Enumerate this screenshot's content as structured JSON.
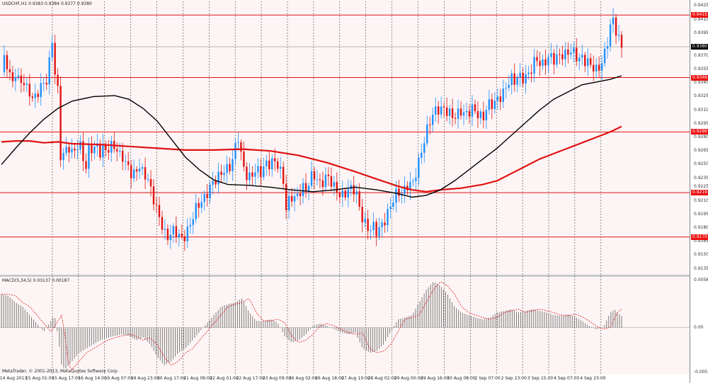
{
  "window": {
    "title": "USDCHF,H1",
    "ohlc": "0.9383 0.9384 0.9377 0.9380"
  },
  "macd": {
    "title": "MACD(5,34,5) 0.00137 0.00187"
  },
  "copyright": "MetaTrader, © 2001-2013, MetaQuotes Software Corp.",
  "colors": {
    "bull": "#1e90ff",
    "bear": "#e11212",
    "level_line": "#e11111",
    "ma_slow": "#000000",
    "ma_fast": "#e11111",
    "histogram": "#7a7a7a",
    "signal": "#e11111"
  },
  "price_scale": {
    "ticks": [
      "0.9425",
      "0.9410",
      "0.9395",
      "0.9380",
      "0.9370",
      "0.9355",
      "0.9340",
      "0.9325",
      "0.9310",
      "0.9295",
      "0.9280",
      "0.9265",
      "0.9250",
      "0.9235",
      "0.9225",
      "0.9210",
      "0.9195",
      "0.9180",
      "0.9165",
      "0.9150",
      "0.9135"
    ],
    "levels": [
      "0.9415",
      "0.9346",
      "0.9286",
      "0.9219",
      "0.9170"
    ],
    "current": "0.9380"
  },
  "macd_scale": {
    "ticks": [
      "0.00589",
      "0.00",
      "-0.00551"
    ]
  },
  "time_axis": [
    "14 Aug 2013",
    "15 Aug 01:00",
    "15 Aug 17:00",
    "16 Aug 14:00",
    "19 Aug 07:00",
    "19 Aug 23:00",
    "20 Aug 17:00",
    "21 Aug 09:00",
    "22 Aug 01:00",
    "22 Aug 17:00",
    "23 Aug 09:00",
    "26 Aug 02:00",
    "26 Aug 18:00",
    "27 Aug 10:00",
    "28 Aug 02:00",
    "29 Aug 00:00",
    "29 Aug 16:00",
    "30 Aug 08:00",
    "2 Sep 07:00",
    "2 Sep 23:00",
    "3 Sep 15:00",
    "4 Sep 07:00",
    "4 Sep 23:00"
  ],
  "chart_data": {
    "type": "candlestick",
    "symbol": "USDCHF",
    "timeframe": "H1",
    "y_range": [
      0.913,
      0.943
    ],
    "levels": [
      0.9415,
      0.9346,
      0.9286,
      0.9219,
      0.917
    ],
    "current_price": 0.938,
    "close_path": [
      [
        0,
        0.9352
      ],
      [
        5,
        0.937
      ],
      [
        10,
        0.9355
      ],
      [
        15,
        0.9338
      ],
      [
        20,
        0.9352
      ],
      [
        25,
        0.934
      ],
      [
        30,
        0.9344
      ],
      [
        35,
        0.9334
      ],
      [
        40,
        0.933
      ],
      [
        45,
        0.932
      ],
      [
        50,
        0.9328
      ],
      [
        55,
        0.9335
      ],
      [
        60,
        0.934
      ],
      [
        65,
        0.9344
      ],
      [
        70,
        0.9378
      ],
      [
        73,
        0.9395
      ],
      [
        76,
        0.9345
      ],
      [
        80,
        0.933
      ],
      [
        82,
        0.9262
      ],
      [
        86,
        0.9258
      ],
      [
        90,
        0.9265
      ],
      [
        95,
        0.927
      ],
      [
        100,
        0.9262
      ],
      [
        105,
        0.9268
      ],
      [
        110,
        0.9273
      ],
      [
        115,
        0.9262
      ],
      [
        118,
        0.9235
      ],
      [
        122,
        0.9265
      ],
      [
        126,
        0.927
      ],
      [
        130,
        0.9265
      ],
      [
        135,
        0.9272
      ],
      [
        140,
        0.9262
      ],
      [
        145,
        0.927
      ],
      [
        150,
        0.9265
      ],
      [
        155,
        0.927
      ],
      [
        160,
        0.9272
      ],
      [
        165,
        0.926
      ],
      [
        170,
        0.9262
      ],
      [
        175,
        0.925
      ],
      [
        180,
        0.9248
      ],
      [
        185,
        0.9235
      ],
      [
        190,
        0.9244
      ],
      [
        195,
        0.9248
      ],
      [
        200,
        0.924
      ],
      [
        205,
        0.9238
      ],
      [
        210,
        0.9225
      ],
      [
        215,
        0.9212
      ],
      [
        220,
        0.9198
      ],
      [
        225,
        0.9188
      ],
      [
        230,
        0.9174
      ],
      [
        235,
        0.917
      ],
      [
        240,
        0.9175
      ],
      [
        245,
        0.9178
      ],
      [
        250,
        0.9172
      ],
      [
        255,
        0.9168
      ],
      [
        260,
        0.9172
      ],
      [
        265,
        0.918
      ],
      [
        270,
        0.9192
      ],
      [
        275,
        0.9202
      ],
      [
        280,
        0.9208
      ],
      [
        285,
        0.921
      ],
      [
        290,
        0.9218
      ],
      [
        295,
        0.9225
      ],
      [
        300,
        0.9232
      ],
      [
        305,
        0.9235
      ],
      [
        310,
        0.924
      ],
      [
        315,
        0.9244
      ],
      [
        320,
        0.9245
      ],
      [
        325,
        0.925
      ],
      [
        330,
        0.9268
      ],
      [
        334,
        0.9283
      ],
      [
        338,
        0.9262
      ],
      [
        342,
        0.9248
      ],
      [
        346,
        0.9238
      ],
      [
        350,
        0.9235
      ],
      [
        355,
        0.924
      ],
      [
        360,
        0.9245
      ],
      [
        365,
        0.924
      ],
      [
        370,
        0.9246
      ],
      [
        375,
        0.9252
      ],
      [
        380,
        0.925
      ],
      [
        385,
        0.9255
      ],
      [
        390,
        0.925
      ],
      [
        395,
        0.924
      ],
      [
        400,
        0.9228
      ],
      [
        402,
        0.92
      ],
      [
        406,
        0.921
      ],
      [
        410,
        0.9215
      ],
      [
        415,
        0.9212
      ],
      [
        420,
        0.9218
      ],
      [
        425,
        0.9225
      ],
      [
        430,
        0.9222
      ],
      [
        435,
        0.9232
      ],
      [
        440,
        0.924
      ],
      [
        445,
        0.9235
      ],
      [
        450,
        0.9228
      ],
      [
        455,
        0.9232
      ],
      [
        460,
        0.9238
      ],
      [
        465,
        0.9232
      ],
      [
        470,
        0.9225
      ],
      [
        475,
        0.922
      ],
      [
        480,
        0.9214
      ],
      [
        485,
        0.9218
      ],
      [
        490,
        0.9222
      ],
      [
        495,
        0.9224
      ],
      [
        500,
        0.9222
      ],
      [
        505,
        0.9205
      ],
      [
        510,
        0.919
      ],
      [
        515,
        0.9182
      ],
      [
        520,
        0.9178
      ],
      [
        525,
        0.9182
      ],
      [
        530,
        0.9176
      ],
      [
        535,
        0.918
      ],
      [
        540,
        0.9186
      ],
      [
        545,
        0.9195
      ],
      [
        550,
        0.9205
      ],
      [
        555,
        0.9215
      ],
      [
        560,
        0.922
      ],
      [
        565,
        0.9218
      ],
      [
        570,
        0.9222
      ],
      [
        575,
        0.923
      ],
      [
        580,
        0.9226
      ],
      [
        585,
        0.924
      ],
      [
        590,
        0.9254
      ],
      [
        595,
        0.927
      ],
      [
        600,
        0.9285
      ],
      [
        605,
        0.9298
      ],
      [
        610,
        0.9306
      ],
      [
        615,
        0.9312
      ],
      [
        620,
        0.931
      ],
      [
        625,
        0.9312
      ],
      [
        630,
        0.9308
      ],
      [
        635,
        0.9305
      ],
      [
        640,
        0.9302
      ],
      [
        645,
        0.9306
      ],
      [
        650,
        0.931
      ],
      [
        655,
        0.9304
      ],
      [
        660,
        0.9308
      ],
      [
        665,
        0.9312
      ],
      [
        670,
        0.9308
      ],
      [
        675,
        0.9304
      ],
      [
        680,
        0.93
      ],
      [
        685,
        0.9312
      ],
      [
        690,
        0.9318
      ],
      [
        695,
        0.9316
      ],
      [
        700,
        0.9322
      ],
      [
        705,
        0.9325
      ],
      [
        710,
        0.933
      ],
      [
        715,
        0.934
      ],
      [
        720,
        0.9345
      ],
      [
        725,
        0.9342
      ],
      [
        730,
        0.9348
      ],
      [
        735,
        0.9345
      ],
      [
        740,
        0.9346
      ],
      [
        745,
        0.935
      ],
      [
        750,
        0.9358
      ],
      [
        755,
        0.9368
      ],
      [
        760,
        0.9362
      ],
      [
        765,
        0.936
      ],
      [
        770,
        0.9366
      ],
      [
        775,
        0.937
      ],
      [
        780,
        0.9366
      ],
      [
        785,
        0.9368
      ],
      [
        790,
        0.9372
      ],
      [
        795,
        0.937
      ],
      [
        800,
        0.9374
      ],
      [
        805,
        0.9376
      ],
      [
        810,
        0.9372
      ],
      [
        815,
        0.9366
      ],
      [
        820,
        0.9368
      ],
      [
        825,
        0.9364
      ],
      [
        830,
        0.9362
      ],
      [
        835,
        0.9358
      ],
      [
        840,
        0.9354
      ],
      [
        845,
        0.9358
      ],
      [
        850,
        0.9366
      ],
      [
        855,
        0.9382
      ],
      [
        860,
        0.9402
      ],
      [
        864,
        0.941
      ],
      [
        868,
        0.9398
      ],
      [
        872,
        0.9388
      ],
      [
        876,
        0.938
      ]
    ],
    "ma_slow": [
      [
        0,
        0.925
      ],
      [
        20,
        0.9268
      ],
      [
        40,
        0.9285
      ],
      [
        60,
        0.93
      ],
      [
        80,
        0.9312
      ],
      [
        100,
        0.932
      ],
      [
        130,
        0.9325
      ],
      [
        160,
        0.9326
      ],
      [
        180,
        0.9322
      ],
      [
        200,
        0.9312
      ],
      [
        220,
        0.9298
      ],
      [
        240,
        0.9278
      ],
      [
        260,
        0.9258
      ],
      [
        280,
        0.9244
      ],
      [
        300,
        0.9233
      ],
      [
        320,
        0.9228
      ],
      [
        350,
        0.9227
      ],
      [
        380,
        0.9225
      ],
      [
        410,
        0.9222
      ],
      [
        440,
        0.922
      ],
      [
        470,
        0.9222
      ],
      [
        500,
        0.9225
      ],
      [
        530,
        0.9222
      ],
      [
        560,
        0.9218
      ],
      [
        580,
        0.9214
      ],
      [
        600,
        0.9216
      ],
      [
        620,
        0.9222
      ],
      [
        640,
        0.9232
      ],
      [
        660,
        0.9244
      ],
      [
        680,
        0.9256
      ],
      [
        700,
        0.9268
      ],
      [
        720,
        0.9282
      ],
      [
        740,
        0.9296
      ],
      [
        760,
        0.931
      ],
      [
        780,
        0.9322
      ],
      [
        800,
        0.933
      ],
      [
        820,
        0.9338
      ],
      [
        840,
        0.9341
      ],
      [
        860,
        0.9344
      ],
      [
        876,
        0.9348
      ]
    ],
    "ma_fast": [
      [
        0,
        0.9275
      ],
      [
        20,
        0.9276
      ],
      [
        40,
        0.9276
      ],
      [
        60,
        0.9274
      ],
      [
        80,
        0.9275
      ],
      [
        100,
        0.9273
      ],
      [
        140,
        0.9272
      ],
      [
        180,
        0.927
      ],
      [
        220,
        0.9268
      ],
      [
        260,
        0.9266
      ],
      [
        300,
        0.9266
      ],
      [
        340,
        0.9267
      ],
      [
        380,
        0.9265
      ],
      [
        420,
        0.926
      ],
      [
        460,
        0.9252
      ],
      [
        500,
        0.9242
      ],
      [
        530,
        0.9234
      ],
      [
        560,
        0.9226
      ],
      [
        580,
        0.9222
      ],
      [
        600,
        0.922
      ],
      [
        620,
        0.9222
      ],
      [
        650,
        0.9224
      ],
      [
        680,
        0.9228
      ],
      [
        700,
        0.9232
      ],
      [
        720,
        0.924
      ],
      [
        740,
        0.9248
      ],
      [
        760,
        0.9256
      ],
      [
        780,
        0.9262
      ],
      [
        800,
        0.9268
      ],
      [
        820,
        0.9274
      ],
      [
        840,
        0.928
      ],
      [
        860,
        0.9286
      ],
      [
        876,
        0.9292
      ]
    ],
    "macd": {
      "range": [
        -0.00551,
        0.00589
      ],
      "histogram_path": [
        [
          0,
          0.004
        ],
        [
          10,
          0.0038
        ],
        [
          20,
          0.003
        ],
        [
          30,
          0.0025
        ],
        [
          40,
          0.0015
        ],
        [
          50,
          0.0005
        ],
        [
          60,
          -0.0005
        ],
        [
          70,
          0.0008
        ],
        [
          75,
          0.0015
        ],
        [
          80,
          -0.001
        ],
        [
          85,
          -0.0045
        ],
        [
          90,
          -0.005
        ],
        [
          100,
          -0.004
        ],
        [
          110,
          -0.003
        ],
        [
          120,
          -0.0025
        ],
        [
          130,
          -0.002
        ],
        [
          140,
          -0.0015
        ],
        [
          150,
          -0.0012
        ],
        [
          160,
          -0.001
        ],
        [
          170,
          -0.0008
        ],
        [
          180,
          -0.001
        ],
        [
          190,
          -0.0015
        ],
        [
          200,
          -0.0012
        ],
        [
          210,
          -0.002
        ],
        [
          220,
          -0.0035
        ],
        [
          230,
          -0.0045
        ],
        [
          240,
          -0.004
        ],
        [
          250,
          -0.003
        ],
        [
          260,
          -0.0025
        ],
        [
          270,
          -0.0015
        ],
        [
          280,
          -0.0005
        ],
        [
          290,
          0.0005
        ],
        [
          300,
          0.0015
        ],
        [
          310,
          0.0025
        ],
        [
          320,
          0.0028
        ],
        [
          330,
          0.003
        ],
        [
          340,
          0.0035
        ],
        [
          350,
          0.0018
        ],
        [
          360,
          0.0008
        ],
        [
          370,
          0.0008
        ],
        [
          380,
          0.001
        ],
        [
          390,
          0.0006
        ],
        [
          400,
          -0.001
        ],
        [
          410,
          -0.0018
        ],
        [
          420,
          -0.0015
        ],
        [
          430,
          -0.0008
        ],
        [
          440,
          0.0002
        ],
        [
          450,
          0.0005
        ],
        [
          460,
          0.0002
        ],
        [
          470,
          -0.0002
        ],
        [
          480,
          -0.0006
        ],
        [
          490,
          -0.0008
        ],
        [
          500,
          -0.0006
        ],
        [
          510,
          -0.0025
        ],
        [
          520,
          -0.003
        ],
        [
          530,
          -0.0028
        ],
        [
          540,
          -0.002
        ],
        [
          550,
          -0.0005
        ],
        [
          560,
          0.001
        ],
        [
          570,
          0.0012
        ],
        [
          580,
          0.0015
        ],
        [
          590,
          0.003
        ],
        [
          600,
          0.0045
        ],
        [
          610,
          0.0055
        ],
        [
          620,
          0.005
        ],
        [
          630,
          0.004
        ],
        [
          640,
          0.0025
        ],
        [
          650,
          0.0018
        ],
        [
          660,
          0.0015
        ],
        [
          670,
          0.0012
        ],
        [
          680,
          0.001
        ],
        [
          690,
          0.0012
        ],
        [
          700,
          0.0018
        ],
        [
          710,
          0.002
        ],
        [
          720,
          0.0022
        ],
        [
          730,
          0.0018
        ],
        [
          740,
          0.002
        ],
        [
          750,
          0.0022
        ],
        [
          760,
          0.002
        ],
        [
          770,
          0.0018
        ],
        [
          780,
          0.0015
        ],
        [
          790,
          0.0014
        ],
        [
          800,
          0.0016
        ],
        [
          810,
          0.0013
        ],
        [
          820,
          0.0008
        ],
        [
          830,
          0.0002
        ],
        [
          840,
          -0.0002
        ],
        [
          850,
          0.0
        ],
        [
          860,
          0.0018
        ],
        [
          866,
          0.0022
        ],
        [
          870,
          0.0018
        ],
        [
          876,
          0.0014
        ]
      ]
    }
  }
}
